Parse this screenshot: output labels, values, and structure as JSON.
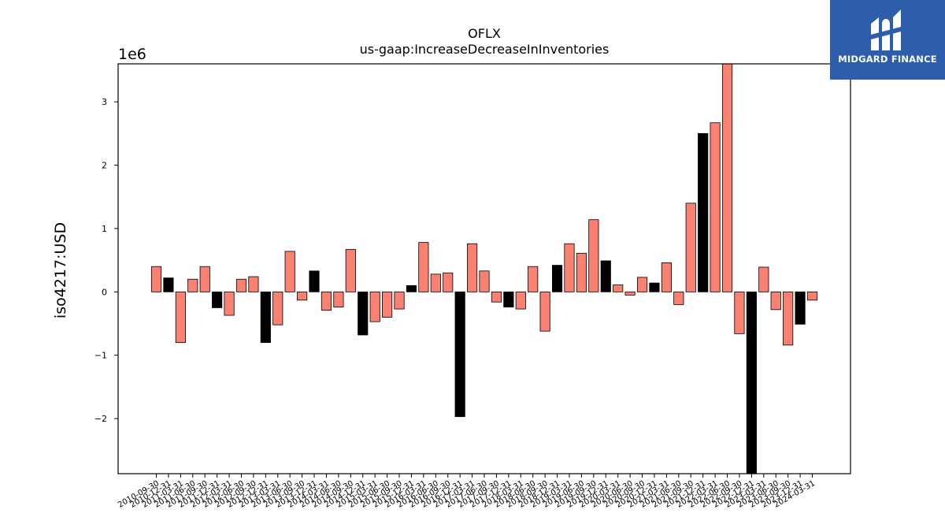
{
  "chart_data": {
    "type": "bar",
    "title": "OFLX",
    "subtitle": "us-gaap:IncreaseDecreaseInInventories",
    "ylabel": "iso4217:USD",
    "xlabel": "",
    "y_offset_label": "1e6",
    "ylim": [
      -2.87,
      3.6
    ],
    "yticks": [
      -2,
      -1,
      0,
      1,
      2,
      3
    ],
    "ytick_labels": [
      "−2",
      "−1",
      "0",
      "1",
      "2",
      "3"
    ],
    "grid": false,
    "colors": {
      "quarterly": "#fa8072",
      "annual": "#000000"
    },
    "categories": [
      "2010-09-30",
      "2010-12-31",
      "2011-03-31",
      "2011-06-30",
      "2011-09-30",
      "2011-12-31",
      "2012-03-31",
      "2012-06-30",
      "2012-09-30",
      "2012-12-31",
      "2013-03-31",
      "2013-06-30",
      "2013-09-30",
      "2013-12-31",
      "2014-03-31",
      "2014-06-30",
      "2014-09-30",
      "2014-12-31",
      "2015-03-31",
      "2015-06-30",
      "2015-09-30",
      "2015-12-31",
      "2016-03-31",
      "2016-06-30",
      "2016-09-30",
      "2016-12-31",
      "2017-03-31",
      "2017-06-30",
      "2017-09-30",
      "2017-12-31",
      "2018-03-31",
      "2018-06-30",
      "2018-09-30",
      "2018-12-31",
      "2019-03-31",
      "2019-06-30",
      "2019-09-30",
      "2019-12-31",
      "2020-03-31",
      "2020-06-30",
      "2020-09-30",
      "2020-12-31",
      "2021-03-31",
      "2021-06-30",
      "2021-09-30",
      "2021-12-31",
      "2022-03-31",
      "2022-06-30",
      "2022-09-30",
      "2022-12-31",
      "2023-03-31",
      "2023-06-30",
      "2023-09-30",
      "2023-12-31",
      "2024-03-31"
    ],
    "values": [
      0.4,
      0.22,
      -0.8,
      0.2,
      0.4,
      -0.25,
      -0.37,
      0.2,
      0.24,
      -0.8,
      -0.52,
      0.64,
      -0.13,
      0.33,
      -0.29,
      -0.24,
      0.67,
      -0.68,
      -0.47,
      -0.4,
      -0.27,
      0.1,
      0.78,
      0.28,
      0.3,
      -1.97,
      0.76,
      0.33,
      -0.16,
      -0.24,
      -0.27,
      0.4,
      -0.62,
      0.42,
      0.76,
      0.61,
      1.14,
      0.49,
      0.11,
      -0.05,
      0.23,
      0.14,
      0.46,
      -0.2,
      1.4,
      2.5,
      2.67,
      3.6,
      -0.66,
      -2.9,
      0.39,
      -0.28,
      -0.84,
      -0.51,
      -0.13
    ],
    "bar_kind": [
      "q",
      "a",
      "q",
      "q",
      "q",
      "a",
      "q",
      "q",
      "q",
      "a",
      "q",
      "q",
      "q",
      "a",
      "q",
      "q",
      "q",
      "a",
      "q",
      "q",
      "q",
      "a",
      "q",
      "q",
      "q",
      "a",
      "q",
      "q",
      "q",
      "a",
      "q",
      "q",
      "q",
      "a",
      "q",
      "q",
      "q",
      "a",
      "q",
      "q",
      "q",
      "a",
      "q",
      "q",
      "q",
      "a",
      "q",
      "q",
      "q",
      "a",
      "q",
      "q",
      "q",
      "a",
      "q"
    ]
  },
  "logo": {
    "text": "MIDGARD FINANCE"
  }
}
